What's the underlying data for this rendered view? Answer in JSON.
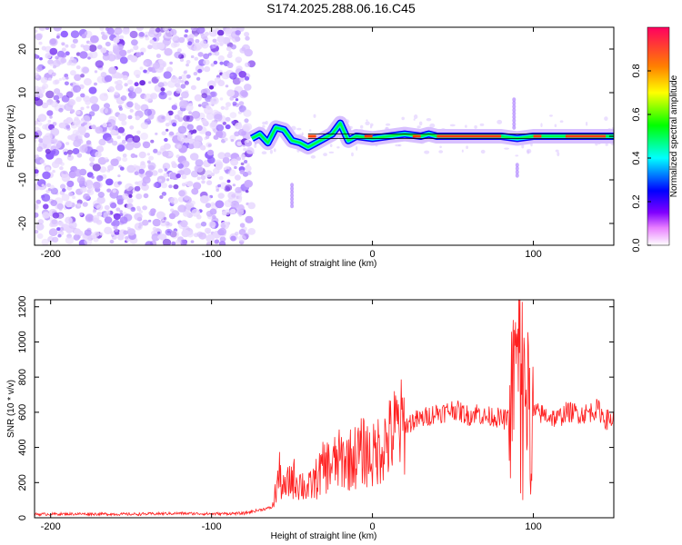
{
  "title": "S174.2025.288.06.16.C45",
  "chart_data": [
    {
      "type": "heatmap",
      "title": "S174.2025.288.06.16.C45",
      "xlabel": "Height of straight line (km)",
      "ylabel": "Frequency (Hz)",
      "xlim": [
        -210,
        150
      ],
      "ylim": [
        -25,
        25
      ],
      "xticks": [
        -200,
        -100,
        0,
        100
      ],
      "yticks": [
        -20,
        -10,
        0,
        10,
        20
      ],
      "xtick_labels": [
        "-200",
        "-100",
        "0",
        "100"
      ],
      "ytick_labels": [
        "-20",
        "-10",
        "0",
        "10",
        "20"
      ],
      "noise_region_x": [
        -210,
        -75
      ],
      "signal_line_frequency": 0,
      "signal_track": [
        {
          "x": -75,
          "y": -0.5
        },
        {
          "x": -70,
          "y": 0.5
        },
        {
          "x": -65,
          "y": -1.5
        },
        {
          "x": -60,
          "y": 2
        },
        {
          "x": -55,
          "y": 1.5
        },
        {
          "x": -50,
          "y": -1
        },
        {
          "x": -45,
          "y": -1.5
        },
        {
          "x": -40,
          "y": -2.5
        },
        {
          "x": -35,
          "y": -1.5
        },
        {
          "x": -30,
          "y": -0.5
        },
        {
          "x": -25,
          "y": 0.5
        },
        {
          "x": -20,
          "y": 3
        },
        {
          "x": -15,
          "y": -1
        },
        {
          "x": -10,
          "y": 0
        },
        {
          "x": 0,
          "y": -0.5
        },
        {
          "x": 10,
          "y": 0
        },
        {
          "x": 20,
          "y": 0.5
        },
        {
          "x": 30,
          "y": 0
        },
        {
          "x": 35,
          "y": 0.5
        },
        {
          "x": 40,
          "y": 0
        },
        {
          "x": 60,
          "y": 0
        },
        {
          "x": 80,
          "y": 0
        },
        {
          "x": 90,
          "y": -0.5
        },
        {
          "x": 100,
          "y": 0
        },
        {
          "x": 120,
          "y": 0
        },
        {
          "x": 150,
          "y": 0
        }
      ],
      "colorbar": {
        "label": "Normalized spectral amplitude",
        "range": [
          0,
          1
        ],
        "ticks": [
          0.0,
          0.2,
          0.4,
          0.6,
          0.8
        ],
        "tick_labels": [
          "0.0",
          "0.2",
          "0.4",
          "0.6",
          "0.8"
        ],
        "colors": [
          "#ffffff",
          "#8000ff",
          "#0000ff",
          "#00ffff",
          "#00ff00",
          "#ffff00",
          "#ff8000",
          "#ff0060"
        ]
      }
    },
    {
      "type": "line",
      "xlabel": "Height of straight line (km)",
      "ylabel": "SNR (10 * v/v)",
      "xlim": [
        -210,
        150
      ],
      "ylim": [
        0,
        1240
      ],
      "xticks": [
        -200,
        -100,
        0,
        100
      ],
      "yticks": [
        0,
        200,
        400,
        600,
        800,
        1000,
        1200
      ],
      "xtick_labels": [
        "-200",
        "-100",
        "0",
        "100"
      ],
      "ytick_labels": [
        "0",
        "200",
        "400",
        "600",
        "800",
        "1000",
        "1200"
      ],
      "color": "#ff2020",
      "series": [
        {
          "name": "SNR",
          "x": [
            -210,
            -180,
            -150,
            -120,
            -100,
            -80,
            -62,
            -58,
            -55,
            -50,
            -45,
            -40,
            -35,
            -30,
            -25,
            -20,
            -15,
            -10,
            -5,
            0,
            5,
            10,
            15,
            20,
            25,
            30,
            35,
            40,
            45,
            50,
            55,
            60,
            65,
            70,
            75,
            80,
            85,
            88,
            90,
            92,
            95,
            98,
            100,
            105,
            110,
            115,
            120,
            125,
            130,
            135,
            140,
            145,
            150
          ],
          "y": [
            20,
            22,
            20,
            25,
            22,
            25,
            60,
            250,
            150,
            230,
            200,
            160,
            220,
            290,
            300,
            330,
            330,
            350,
            380,
            340,
            410,
            440,
            510,
            520,
            550,
            560,
            580,
            600,
            600,
            620,
            600,
            580,
            600,
            570,
            580,
            560,
            560,
            820,
            980,
            1000,
            760,
            560,
            600,
            590,
            580,
            560,
            600,
            600,
            590,
            600,
            620,
            560,
            560
          ]
        }
      ]
    }
  ]
}
